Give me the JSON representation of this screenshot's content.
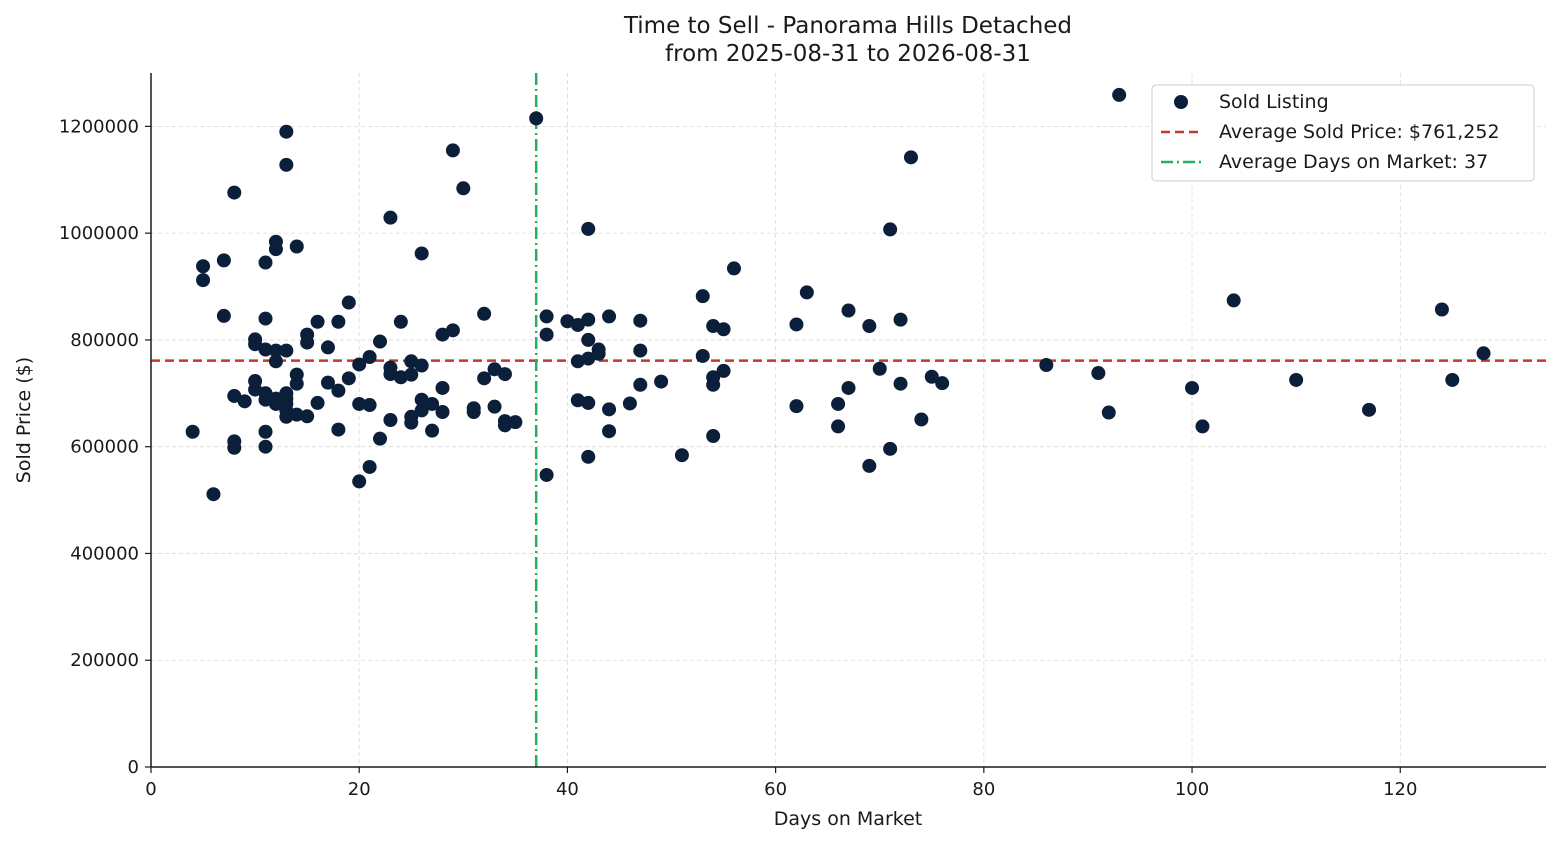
{
  "colors": {
    "points": "#0b1f3a",
    "avg_price_line": "#c0392b",
    "avg_days_line": "#27ae60",
    "grid": "#d9d9d9",
    "axis": "#1a1a1a"
  },
  "chart_data": {
    "type": "scatter",
    "title_line1": "Time to Sell - Panorama Hills Detached",
    "title_line2": "from 2025-08-31 to 2026-08-31",
    "xlabel": "Days on Market",
    "ylabel": "Sold Price ($)",
    "xlim": [
      0,
      134
    ],
    "ylim": [
      0,
      1300000
    ],
    "grid": true,
    "legend_position": "top-right",
    "x_ticks": [
      0,
      20,
      40,
      60,
      80,
      100,
      120
    ],
    "x_tick_labels": [
      "0",
      "20",
      "40",
      "60",
      "80",
      "100",
      "120"
    ],
    "y_ticks": [
      0,
      200000,
      400000,
      600000,
      800000,
      1000000,
      1200000
    ],
    "y_tick_labels": [
      "0",
      "200000",
      "400000",
      "600000",
      "800000",
      "1000000",
      "1200000"
    ],
    "average_sold_price": 761252,
    "average_days_on_market": 37,
    "legend": {
      "points": "Sold Listing",
      "avg_price": "Average Sold Price: $761,252",
      "avg_days": "Average Days on Market: 37"
    },
    "series": [
      {
        "name": "Sold Listing",
        "points": [
          [
            4,
            628000
          ],
          [
            5,
            938000
          ],
          [
            5,
            912000
          ],
          [
            6,
            511000
          ],
          [
            7,
            949000
          ],
          [
            7,
            845000
          ],
          [
            8,
            1076000
          ],
          [
            8,
            695000
          ],
          [
            8,
            610000
          ],
          [
            8,
            598000
          ],
          [
            9,
            685000
          ],
          [
            10,
            801000
          ],
          [
            10,
            792000
          ],
          [
            10,
            723000
          ],
          [
            10,
            707000
          ],
          [
            11,
            945000
          ],
          [
            11,
            840000
          ],
          [
            11,
            782000
          ],
          [
            11,
            700000
          ],
          [
            11,
            688000
          ],
          [
            11,
            628000
          ],
          [
            11,
            600000
          ],
          [
            12,
            984000
          ],
          [
            12,
            970000
          ],
          [
            12,
            780000
          ],
          [
            12,
            760000
          ],
          [
            12,
            690000
          ],
          [
            12,
            680000
          ],
          [
            13,
            1190000
          ],
          [
            13,
            1128000
          ],
          [
            13,
            780000
          ],
          [
            13,
            700000
          ],
          [
            13,
            690000
          ],
          [
            13,
            680000
          ],
          [
            13,
            668000
          ],
          [
            13,
            656000
          ],
          [
            14,
            975000
          ],
          [
            14,
            735000
          ],
          [
            14,
            718000
          ],
          [
            14,
            660000
          ],
          [
            15,
            810000
          ],
          [
            15,
            795000
          ],
          [
            15,
            657000
          ],
          [
            16,
            834000
          ],
          [
            16,
            682000
          ],
          [
            17,
            786000
          ],
          [
            17,
            720000
          ],
          [
            18,
            834000
          ],
          [
            18,
            705000
          ],
          [
            18,
            632000
          ],
          [
            19,
            870000
          ],
          [
            19,
            728000
          ],
          [
            20,
            754000
          ],
          [
            20,
            680000
          ],
          [
            20,
            535000
          ],
          [
            21,
            768000
          ],
          [
            21,
            678000
          ],
          [
            21,
            562000
          ],
          [
            22,
            797000
          ],
          [
            22,
            615000
          ],
          [
            23,
            1029000
          ],
          [
            23,
            748000
          ],
          [
            23,
            736000
          ],
          [
            23,
            650000
          ],
          [
            24,
            834000
          ],
          [
            24,
            730000
          ],
          [
            25,
            760000
          ],
          [
            25,
            735000
          ],
          [
            25,
            656000
          ],
          [
            25,
            645000
          ],
          [
            26,
            962000
          ],
          [
            26,
            752000
          ],
          [
            26,
            688000
          ],
          [
            26,
            668000
          ],
          [
            27,
            680000
          ],
          [
            27,
            630000
          ],
          [
            28,
            810000
          ],
          [
            28,
            710000
          ],
          [
            28,
            665000
          ],
          [
            29,
            1155000
          ],
          [
            29,
            818000
          ],
          [
            30,
            1084000
          ],
          [
            31,
            672000
          ],
          [
            31,
            665000
          ],
          [
            32,
            849000
          ],
          [
            32,
            728000
          ],
          [
            33,
            745000
          ],
          [
            33,
            675000
          ],
          [
            34,
            736000
          ],
          [
            34,
            648000
          ],
          [
            34,
            640000
          ],
          [
            35,
            646000
          ],
          [
            37,
            1215000
          ],
          [
            38,
            844000
          ],
          [
            38,
            810000
          ],
          [
            38,
            547000
          ],
          [
            40,
            835000
          ],
          [
            41,
            828000
          ],
          [
            41,
            760000
          ],
          [
            41,
            687000
          ],
          [
            42,
            1008000
          ],
          [
            42,
            838000
          ],
          [
            42,
            800000
          ],
          [
            42,
            765000
          ],
          [
            42,
            682000
          ],
          [
            42,
            581000
          ],
          [
            43,
            782000
          ],
          [
            43,
            774000
          ],
          [
            44,
            844000
          ],
          [
            44,
            670000
          ],
          [
            44,
            629000
          ],
          [
            46,
            681000
          ],
          [
            47,
            836000
          ],
          [
            47,
            780000
          ],
          [
            47,
            716000
          ],
          [
            49,
            722000
          ],
          [
            51,
            584000
          ],
          [
            53,
            882000
          ],
          [
            53,
            770000
          ],
          [
            54,
            826000
          ],
          [
            54,
            730000
          ],
          [
            54,
            716000
          ],
          [
            54,
            620000
          ],
          [
            55,
            820000
          ],
          [
            55,
            742000
          ],
          [
            56,
            934000
          ],
          [
            62,
            829000
          ],
          [
            62,
            676000
          ],
          [
            63,
            889000
          ],
          [
            66,
            680000
          ],
          [
            66,
            638000
          ],
          [
            67,
            855000
          ],
          [
            67,
            710000
          ],
          [
            69,
            826000
          ],
          [
            69,
            564000
          ],
          [
            70,
            746000
          ],
          [
            71,
            1007000
          ],
          [
            71,
            596000
          ],
          [
            72,
            838000
          ],
          [
            72,
            718000
          ],
          [
            73,
            1142000
          ],
          [
            74,
            651000
          ],
          [
            75,
            731000
          ],
          [
            76,
            719000
          ],
          [
            86,
            753000
          ],
          [
            91,
            738000
          ],
          [
            92,
            664000
          ],
          [
            93,
            1259000
          ],
          [
            100,
            710000
          ],
          [
            101,
            638000
          ],
          [
            104,
            874000
          ],
          [
            110,
            725000
          ],
          [
            117,
            669000
          ],
          [
            124,
            857000
          ],
          [
            125,
            725000
          ],
          [
            128,
            775000
          ]
        ]
      }
    ]
  }
}
